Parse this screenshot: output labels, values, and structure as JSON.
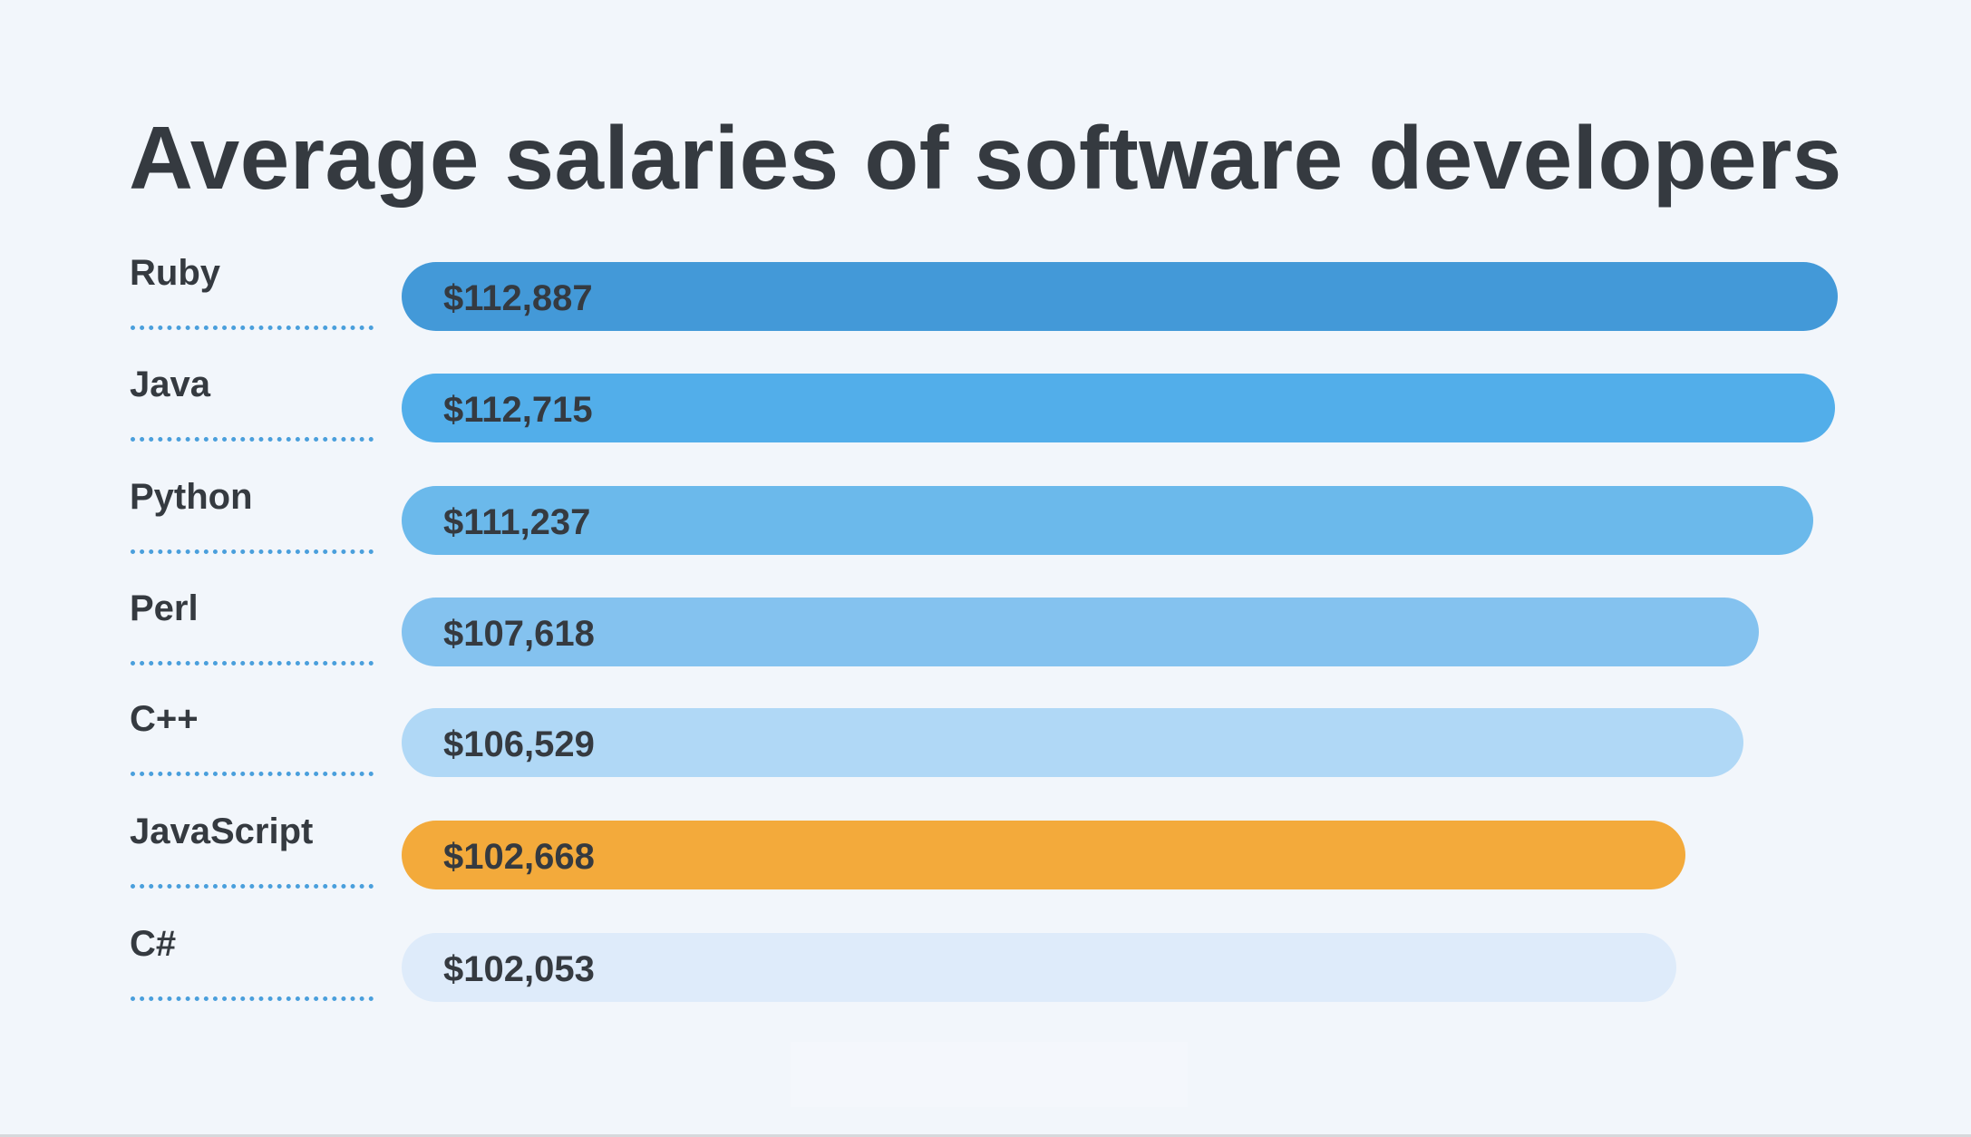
{
  "chart_data": {
    "type": "bar",
    "orientation": "horizontal",
    "title": "Average salaries of software developers",
    "categories": [
      "Ruby",
      "Java",
      "Python",
      "Perl",
      "C++",
      "JavaScript",
      "C#"
    ],
    "values": [
      112887,
      112715,
      111237,
      107618,
      106529,
      102668,
      102053
    ],
    "value_labels": [
      "$112,887",
      "$112,715",
      "$111,237",
      "$107,618",
      "$106,529",
      "$102,668",
      "$102,053"
    ],
    "colors": [
      "#4399d8",
      "#52aeea",
      "#6bb9eb",
      "#84c2ef",
      "#b0d8f6",
      "#f3aa3b",
      "#deebfa"
    ],
    "grid": false,
    "legend": "none"
  }
}
